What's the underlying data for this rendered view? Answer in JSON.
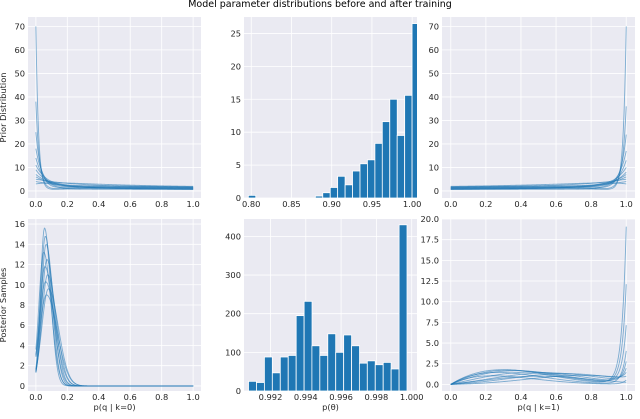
{
  "figure": {
    "title": "Model parameter distributions before and after training",
    "colors": {
      "background": "#eaeaf2",
      "grid": "#ffffff",
      "series": "#1f77b4",
      "text": "#262626"
    }
  },
  "chart_data": [
    {
      "id": "prior-q0",
      "type": "line",
      "ylabel": "Prior Distribution",
      "xlabel": "",
      "xlim": [
        -0.05,
        1.05
      ],
      "ylim": [
        -3,
        74
      ],
      "xticks": [
        0.0,
        0.2,
        0.4,
        0.6,
        0.8,
        1.0
      ],
      "xtick_labels": [
        "0.0",
        "0.2",
        "0.4",
        "0.6",
        "0.8",
        "1.0"
      ],
      "yticks": [
        0,
        10,
        20,
        30,
        40,
        50,
        60,
        70
      ],
      "ytick_labels": [
        "0",
        "10",
        "20",
        "30",
        "40",
        "50",
        "60",
        "70"
      ],
      "series_family": {
        "description_values": "many overlapping density curves; spike near x=0 decaying quickly",
        "curves": [
          {
            "peak": 70,
            "decay": 60,
            "tail": 1.2
          },
          {
            "peak": 38,
            "decay": 45,
            "tail": 1.6
          },
          {
            "peak": 25,
            "decay": 30,
            "tail": 2.0
          },
          {
            "peak": 18,
            "decay": 22,
            "tail": 2.4
          },
          {
            "peak": 14,
            "decay": 18,
            "tail": 1.0
          },
          {
            "peak": 11,
            "decay": 14,
            "tail": 2.8
          },
          {
            "peak": 9,
            "decay": 12,
            "tail": 1.8
          },
          {
            "peak": 7,
            "decay": 10,
            "tail": 2.2
          },
          {
            "peak": 6,
            "decay": 8,
            "tail": 1.4
          },
          {
            "peak": 5,
            "decay": 6,
            "tail": 2.6
          },
          {
            "peak": 4,
            "decay": 5,
            "tail": 1.1
          },
          {
            "peak": 3,
            "decay": 4,
            "tail": 3.0
          }
        ]
      }
    },
    {
      "id": "prior-theta",
      "type": "bar",
      "xlabel": "",
      "ylabel": "",
      "xlim": [
        0.791,
        1.006
      ],
      "ylim": [
        0,
        27.5
      ],
      "xticks": [
        0.8,
        0.85,
        0.9,
        0.95,
        1.0
      ],
      "xtick_labels": [
        "0.80",
        "0.85",
        "0.90",
        "0.95",
        "1.00"
      ],
      "yticks": [
        0,
        5,
        10,
        15,
        20,
        25
      ],
      "ytick_labels": [
        "0",
        "5",
        "10",
        "15",
        "20",
        "25"
      ],
      "bin_width": 0.00925,
      "bins": [
        {
          "x": 0.801,
          "v": 0.4
        },
        {
          "x": 0.8195,
          "v": 0
        },
        {
          "x": 0.838,
          "v": 0
        },
        {
          "x": 0.8565,
          "v": 0
        },
        {
          "x": 0.875,
          "v": 0
        },
        {
          "x": 0.8843,
          "v": 0.3
        },
        {
          "x": 0.8935,
          "v": 0.8
        },
        {
          "x": 0.9028,
          "v": 1.6
        },
        {
          "x": 0.912,
          "v": 3.3
        },
        {
          "x": 0.9213,
          "v": 2.0
        },
        {
          "x": 0.9305,
          "v": 4.1
        },
        {
          "x": 0.9398,
          "v": 5.2
        },
        {
          "x": 0.949,
          "v": 5.8
        },
        {
          "x": 0.9583,
          "v": 8.3
        },
        {
          "x": 0.9675,
          "v": 11.6
        },
        {
          "x": 0.9768,
          "v": 15.0
        },
        {
          "x": 0.986,
          "v": 9.5
        },
        {
          "x": 0.9953,
          "v": 15.6
        },
        {
          "x": 1.0045,
          "v": 26.5
        }
      ]
    },
    {
      "id": "prior-q1",
      "type": "line",
      "xlabel": "",
      "ylabel": "",
      "xlim": [
        -0.05,
        1.05
      ],
      "ylim": [
        -3,
        74
      ],
      "xticks": [
        0.0,
        0.2,
        0.4,
        0.6,
        0.8,
        1.0
      ],
      "xtick_labels": [
        "0.0",
        "0.2",
        "0.4",
        "0.6",
        "0.8",
        "1.0"
      ],
      "yticks": [
        0,
        10,
        20,
        30,
        40,
        50,
        60,
        70
      ],
      "ytick_labels": [
        "0",
        "10",
        "20",
        "30",
        "40",
        "50",
        "60",
        "70"
      ],
      "series_family": {
        "description_values": "many overlapping density curves; spike near x=1 rising sharply",
        "curves": [
          {
            "peak": 70,
            "decay": 60,
            "tail": 1.2
          },
          {
            "peak": 36,
            "decay": 45,
            "tail": 1.6
          },
          {
            "peak": 24,
            "decay": 30,
            "tail": 2.0
          },
          {
            "peak": 17,
            "decay": 22,
            "tail": 2.4
          },
          {
            "peak": 13,
            "decay": 18,
            "tail": 1.0
          },
          {
            "peak": 10,
            "decay": 14,
            "tail": 2.8
          },
          {
            "peak": 8,
            "decay": 12,
            "tail": 1.8
          },
          {
            "peak": 7,
            "decay": 10,
            "tail": 2.2
          },
          {
            "peak": 6,
            "decay": 8,
            "tail": 1.4
          },
          {
            "peak": 5,
            "decay": 6,
            "tail": 2.6
          },
          {
            "peak": 4,
            "decay": 5,
            "tail": 1.1
          },
          {
            "peak": 3,
            "decay": 4,
            "tail": 3.0
          }
        ]
      }
    },
    {
      "id": "posterior-q0",
      "type": "line",
      "ylabel": "Posterior Samples",
      "xlabel": "p(q | k=0)",
      "xlim": [
        -0.05,
        1.05
      ],
      "ylim": [
        -0.5,
        16.5
      ],
      "xticks": [
        0.0,
        0.2,
        0.4,
        0.6,
        0.8,
        1.0
      ],
      "xtick_labels": [
        "0.0",
        "0.2",
        "0.4",
        "0.6",
        "0.8",
        "1.0"
      ],
      "yticks": [
        0,
        2,
        4,
        6,
        8,
        10,
        12,
        14,
        16
      ],
      "ytick_labels": [
        "0",
        "2",
        "4",
        "6",
        "8",
        "10",
        "12",
        "14",
        "16"
      ],
      "series_family": {
        "description_values": "many overlapping peaked densities, mode near x=0.06",
        "curves": [
          {
            "mode": 0.055,
            "peak": 15.6,
            "width": 0.026
          },
          {
            "mode": 0.06,
            "peak": 14.8,
            "width": 0.028
          },
          {
            "mode": 0.065,
            "peak": 14.0,
            "width": 0.03
          },
          {
            "mode": 0.05,
            "peak": 13.2,
            "width": 0.031
          },
          {
            "mode": 0.07,
            "peak": 12.5,
            "width": 0.033
          },
          {
            "mode": 0.058,
            "peak": 11.8,
            "width": 0.035
          },
          {
            "mode": 0.075,
            "peak": 11.0,
            "width": 0.037
          },
          {
            "mode": 0.062,
            "peak": 10.3,
            "width": 0.04
          },
          {
            "mode": 0.08,
            "peak": 9.6,
            "width": 0.042
          },
          {
            "mode": 0.068,
            "peak": 9.0,
            "width": 0.045
          }
        ]
      }
    },
    {
      "id": "posterior-theta",
      "type": "bar",
      "xlabel": "p(θ)",
      "ylabel": "",
      "xlim": [
        0.9905,
        1.0003
      ],
      "ylim": [
        0,
        445
      ],
      "xticks": [
        0.992,
        0.994,
        0.996,
        0.998,
        1.0
      ],
      "xtick_labels": [
        "0.992",
        "0.994",
        "0.996",
        "0.998",
        "1.000"
      ],
      "yticks": [
        0,
        100,
        200,
        300,
        400
      ],
      "ytick_labels": [
        "0",
        "100",
        "200",
        "300",
        "400"
      ],
      "bin_width": 0.000448,
      "bins": [
        {
          "x": 0.99098,
          "v": 25
        },
        {
          "x": 0.99143,
          "v": 22
        },
        {
          "x": 0.99188,
          "v": 88
        },
        {
          "x": 0.99233,
          "v": 47
        },
        {
          "x": 0.99278,
          "v": 88
        },
        {
          "x": 0.99323,
          "v": 92
        },
        {
          "x": 0.99368,
          "v": 195
        },
        {
          "x": 0.99413,
          "v": 232
        },
        {
          "x": 0.99457,
          "v": 117
        },
        {
          "x": 0.99502,
          "v": 92
        },
        {
          "x": 0.99547,
          "v": 148
        },
        {
          "x": 0.99592,
          "v": 100
        },
        {
          "x": 0.99637,
          "v": 145
        },
        {
          "x": 0.99682,
          "v": 117
        },
        {
          "x": 0.99726,
          "v": 72
        },
        {
          "x": 0.99771,
          "v": 78
        },
        {
          "x": 0.99816,
          "v": 68
        },
        {
          "x": 0.99861,
          "v": 74
        },
        {
          "x": 0.99906,
          "v": 57
        },
        {
          "x": 0.99951,
          "v": 430
        }
      ]
    },
    {
      "id": "posterior-q1",
      "type": "line",
      "xlabel": "p(q | k=1)",
      "ylabel": "",
      "xlim": [
        -0.05,
        1.05
      ],
      "ylim": [
        -0.8,
        20.0
      ],
      "xticks": [
        0.0,
        0.2,
        0.4,
        0.6,
        0.8,
        1.0
      ],
      "xtick_labels": [
        "0.0",
        "0.2",
        "0.4",
        "0.6",
        "0.8",
        "1.0"
      ],
      "yticks": [
        0.0,
        2.5,
        5.0,
        7.5,
        10.0,
        12.5,
        15.0,
        17.5,
        20.0
      ],
      "ytick_labels": [
        "0.0",
        "2.5",
        "5.0",
        "7.5",
        "10.0",
        "12.5",
        "15.0",
        "17.5",
        "20.0"
      ],
      "series_family": {
        "description_values": "many broad low densities peaking ~1.8 around x=0.2-0.6, some spiking near x=1 up to ~19",
        "curves": [
          {
            "mode": 0.25,
            "peak": 1.9,
            "spike": 19.0
          },
          {
            "mode": 0.3,
            "peak": 1.8,
            "spike": 12.0
          },
          {
            "mode": 0.35,
            "peak": 1.7,
            "spike": 7.0
          },
          {
            "mode": 0.2,
            "peak": 1.6,
            "spike": 4.0
          },
          {
            "mode": 0.45,
            "peak": 1.5,
            "spike": 2.5
          },
          {
            "mode": 0.55,
            "peak": 1.4,
            "spike": 1.5
          },
          {
            "mode": 0.65,
            "peak": 1.3,
            "spike": 0.8
          },
          {
            "mode": 0.15,
            "peak": 1.2,
            "spike": 0.5
          },
          {
            "mode": 0.75,
            "peak": 1.1,
            "spike": 0.2
          },
          {
            "mode": 0.5,
            "peak": 1.0,
            "spike": 0.0
          }
        ]
      }
    }
  ]
}
